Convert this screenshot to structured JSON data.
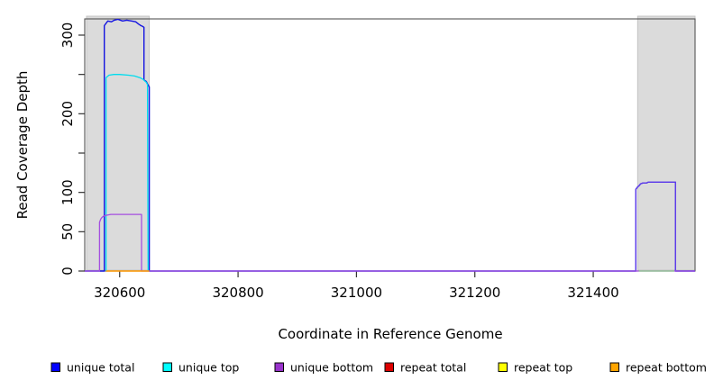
{
  "chart_data": {
    "type": "line",
    "title": "",
    "xlabel": "Coordinate in Reference Genome",
    "ylabel": "Read Coverage Depth",
    "xlim": [
      320541,
      321572
    ],
    "ylim": [
      0,
      320
    ],
    "x_ticks": [
      320600,
      320800,
      321000,
      321200,
      321400
    ],
    "x_tick_labels": [
      "320600",
      "320800",
      "321000",
      "321200",
      "321400"
    ],
    "y_ticks": [
      0,
      50,
      100,
      150,
      200,
      250,
      300
    ],
    "y_tick_labels": [
      "0",
      "50",
      "100",
      "",
      "200",
      "",
      "300"
    ],
    "grid": false,
    "highlight_regions": [
      {
        "name": "repeat-region-left",
        "x0": 320544,
        "x1": 320650,
        "fill": "#DBDBDB",
        "stroke": "#C4C4C4"
      },
      {
        "name": "repeat-region-right",
        "x0": 321475,
        "x1": 321572,
        "fill": "#DBDBDB",
        "stroke": "#C4C4C4"
      }
    ],
    "series": [
      {
        "name": "unique total",
        "color": "#1414E0",
        "width": 1.4,
        "points": [
          [
            320541,
            0
          ],
          [
            320574,
            0
          ],
          [
            320574,
            312
          ],
          [
            320577,
            315
          ],
          [
            320580,
            318
          ],
          [
            320586,
            317
          ],
          [
            320591,
            319
          ],
          [
            320597,
            320
          ],
          [
            320605,
            318
          ],
          [
            320612,
            319
          ],
          [
            320620,
            318
          ],
          [
            320627,
            317
          ],
          [
            320632,
            314
          ],
          [
            320636,
            312
          ],
          [
            320639,
            311
          ],
          [
            320641,
            310
          ],
          [
            320641,
            243
          ],
          [
            320645,
            241
          ],
          [
            320647,
            238
          ],
          [
            320650,
            234
          ],
          [
            320650,
            0
          ],
          [
            321472,
            0
          ],
          [
            321472,
            104
          ],
          [
            321475,
            107
          ],
          [
            321478,
            109
          ],
          [
            321480,
            111
          ],
          [
            321484,
            112
          ],
          [
            321490,
            112
          ],
          [
            321493,
            113
          ],
          [
            321536,
            113
          ],
          [
            321539,
            113
          ],
          [
            321539,
            0
          ],
          [
            321572,
            0
          ]
        ]
      },
      {
        "name": "unique top",
        "color": "#00DCEE",
        "width": 1.3,
        "points": [
          [
            320577,
            0
          ],
          [
            320577,
            246
          ],
          [
            320582,
            249
          ],
          [
            320590,
            250
          ],
          [
            320600,
            250
          ],
          [
            320615,
            249
          ],
          [
            320625,
            248
          ],
          [
            320634,
            246
          ],
          [
            320639,
            244
          ],
          [
            320642,
            242
          ],
          [
            320645,
            240
          ],
          [
            320647,
            237
          ],
          [
            320648,
            0
          ]
        ]
      },
      {
        "name": "unique bottom",
        "color": "#A44EE0",
        "width": 1.3,
        "points": [
          [
            320541,
            0
          ],
          [
            320566,
            0
          ],
          [
            320566,
            62
          ],
          [
            320568,
            66
          ],
          [
            320570,
            68
          ],
          [
            320573,
            70
          ],
          [
            320578,
            71
          ],
          [
            320585,
            72
          ],
          [
            320600,
            72
          ],
          [
            320637,
            72
          ],
          [
            320637,
            0
          ],
          [
            321572,
            0
          ]
        ]
      },
      {
        "name": "repeat total",
        "color": "#DD0000",
        "width": 1.3,
        "points": []
      },
      {
        "name": "repeat top",
        "color": "#FFFF00",
        "width": 1.3,
        "points": []
      },
      {
        "name": "repeat bottom",
        "color": "#FF9900",
        "width": 1.5,
        "points": [
          [
            320577,
            0
          ],
          [
            320650,
            0
          ]
        ]
      },
      {
        "name": "baseline overlap segment",
        "color": "#8FCE8F",
        "width": 1.3,
        "points": [
          [
            321477,
            0
          ],
          [
            321537,
            0
          ]
        ]
      },
      {
        "name": "unique bottom right overlay",
        "color": "#8E55F0",
        "width": 1.4,
        "opacity": 0.6,
        "points": [
          [
            321472,
            0
          ],
          [
            321472,
            104
          ],
          [
            321475,
            107
          ],
          [
            321478,
            109
          ],
          [
            321480,
            111
          ],
          [
            321484,
            112
          ],
          [
            321490,
            112
          ],
          [
            321493,
            113
          ],
          [
            321536,
            113
          ],
          [
            321539,
            113
          ],
          [
            321539,
            0
          ]
        ]
      }
    ],
    "legend": {
      "position": "bottom",
      "entries": [
        {
          "label": "unique total",
          "color": "#0000FF"
        },
        {
          "label": "unique top",
          "color": "#00FFFF"
        },
        {
          "label": "unique bottom",
          "color": "#9932CC"
        },
        {
          "label": "repeat total",
          "color": "#DD0000"
        },
        {
          "label": "repeat top",
          "color": "#FFFF00"
        },
        {
          "label": "repeat bottom",
          "color": "#FFA500"
        }
      ]
    }
  }
}
